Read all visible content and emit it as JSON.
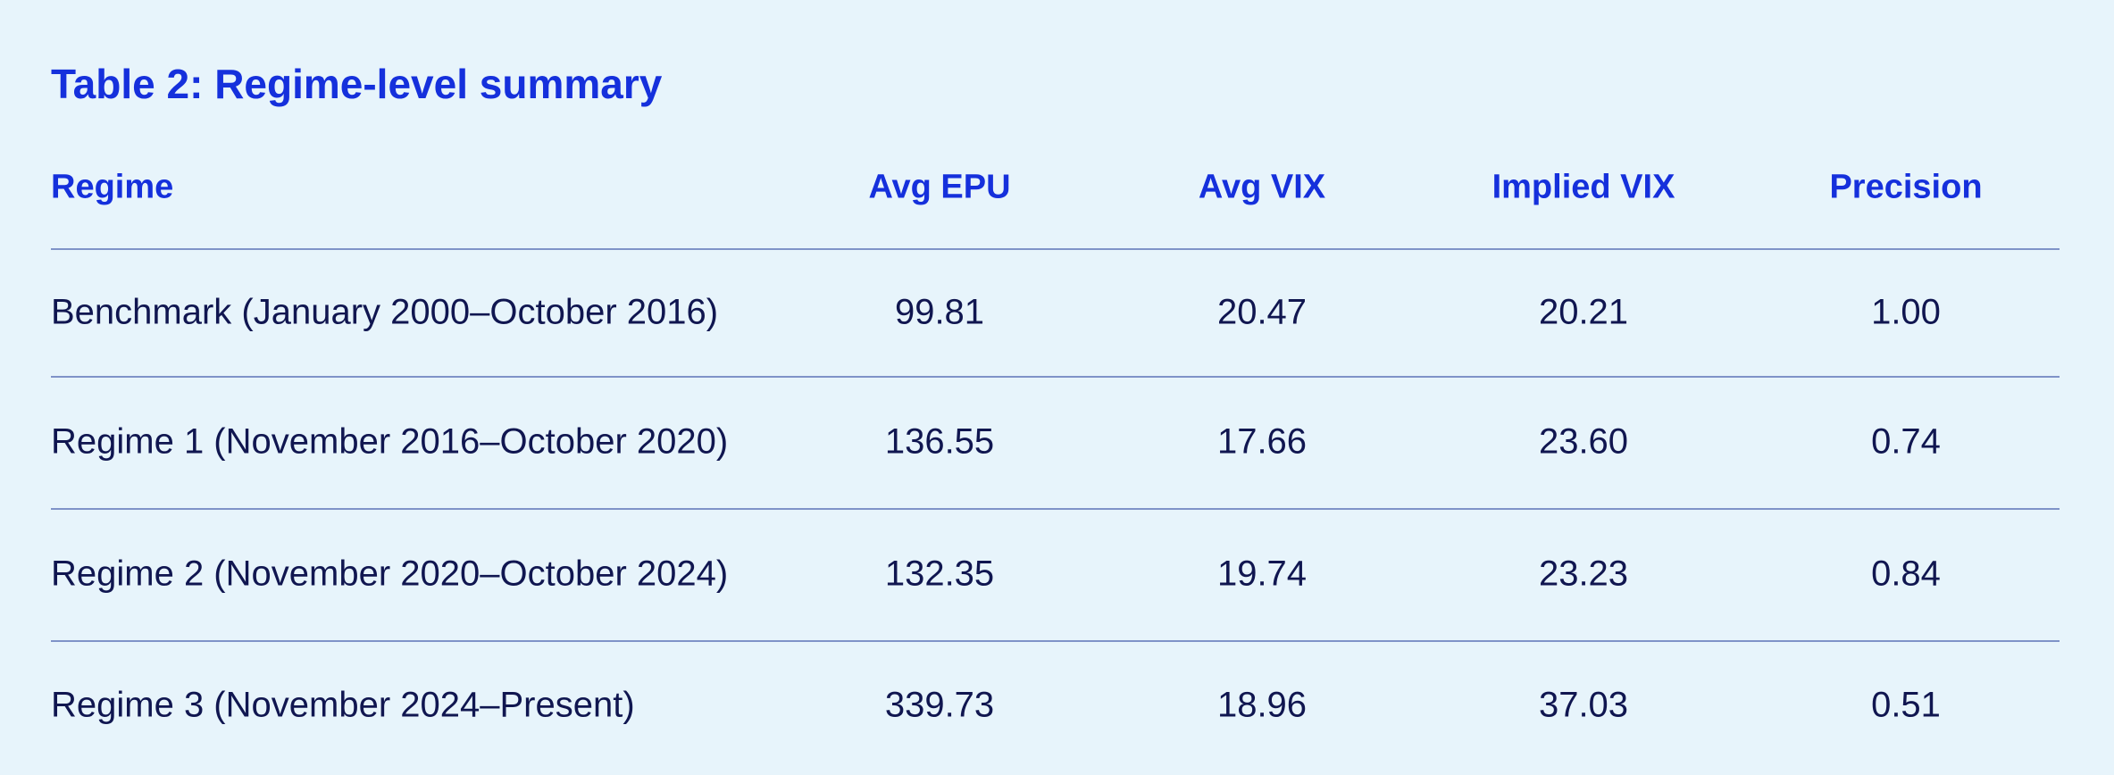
{
  "title": "Table 2: Regime-level summary",
  "table": {
    "header": [
      "Regime",
      "Avg EPU",
      "Avg VIX",
      "Implied VIX",
      "Precision"
    ],
    "rows": [
      [
        "Benchmark (January 2000–October 2016)",
        "99.81",
        "20.47",
        "20.21",
        "1.00"
      ],
      [
        "Regime 1 (November 2016–October 2020)",
        "136.55",
        "17.66",
        "23.60",
        "0.74"
      ],
      [
        "Regime 2 (November 2020–October 2024)",
        "132.35",
        "19.74",
        "23.23",
        "0.84"
      ],
      [
        "Regime 3 (November 2024–Present)",
        "339.73",
        "18.96",
        "37.03",
        "0.51"
      ]
    ]
  }
}
